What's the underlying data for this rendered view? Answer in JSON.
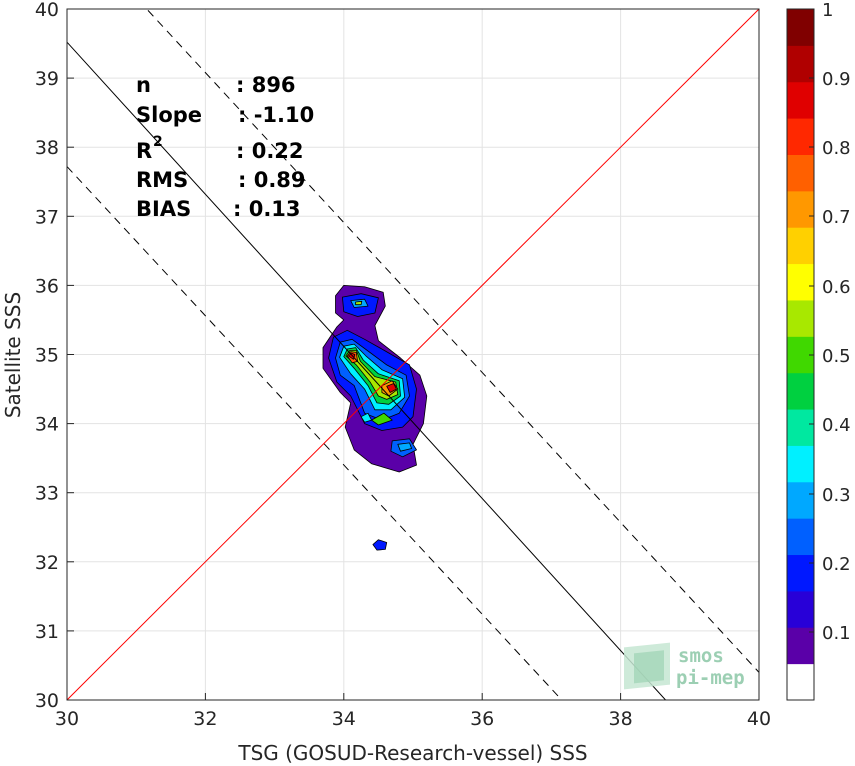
{
  "chart_data": {
    "type": "contour",
    "xlabel": "TSG (GOSUD-Research-vessel) SSS",
    "ylabel": "Satellite SSS",
    "xlim": [
      30,
      40
    ],
    "ylim": [
      30,
      40
    ],
    "xticks": [
      30,
      32,
      34,
      36,
      38,
      40
    ],
    "yticks": [
      30,
      31,
      32,
      33,
      34,
      35,
      36,
      37,
      38,
      39,
      40
    ],
    "grid": true,
    "stats": [
      {
        "key": "n",
        "value": ": 896"
      },
      {
        "key": "Slope",
        "value": ": -1.10"
      },
      {
        "key": "R",
        "sup": "2",
        "value": ": 0.22"
      },
      {
        "key": "RMS",
        "value": ": 0.89"
      },
      {
        "key": "BIAS",
        "value": ": 0.13"
      }
    ],
    "lines": {
      "identity": {
        "color": "#ff0000",
        "from": [
          30,
          30
        ],
        "to": [
          40,
          40
        ]
      },
      "fit": {
        "color": "#000000",
        "style": "solid",
        "from": [
          30,
          39.52
        ],
        "to": [
          38.65,
          30
        ]
      },
      "fit_upper": {
        "color": "#000000",
        "style": "dashed",
        "from": [
          31.17,
          39.98
        ],
        "to": [
          40,
          30.4
        ]
      },
      "fit_lower": {
        "color": "#000000",
        "style": "dashed",
        "from": [
          30,
          37.72
        ],
        "to": [
          37.15,
          30
        ]
      }
    },
    "density_peaks": [
      {
        "x": 34.1,
        "y": 34.95,
        "level": 1.0
      },
      {
        "x": 34.75,
        "y": 34.5,
        "level": 0.95
      },
      {
        "x": 34.6,
        "y": 34.2,
        "level": 0.6
      },
      {
        "x": 34.2,
        "y": 35.75,
        "level": 0.3
      },
      {
        "x": 34.9,
        "y": 33.65,
        "level": 0.25
      },
      {
        "x": 34.55,
        "y": 32.25,
        "level": 0.1
      }
    ],
    "colorbar": {
      "ticks": [
        "0.1",
        "0.2",
        "0.3",
        "0.4",
        "0.5",
        "0.6",
        "0.7",
        "0.8",
        "0.9",
        "1"
      ],
      "colors": [
        "#ffffff",
        "#5a00a8",
        "#2800d8",
        "#0018ff",
        "#0060ff",
        "#00a8ff",
        "#00f0ff",
        "#00e8a0",
        "#00d040",
        "#40d800",
        "#a8e800",
        "#ffff00",
        "#ffd000",
        "#ff9800",
        "#ff6000",
        "#ff2800",
        "#e00000",
        "#b00000",
        "#800000"
      ]
    }
  },
  "logo": {
    "line1": "smos",
    "line2": "pi-mep"
  }
}
